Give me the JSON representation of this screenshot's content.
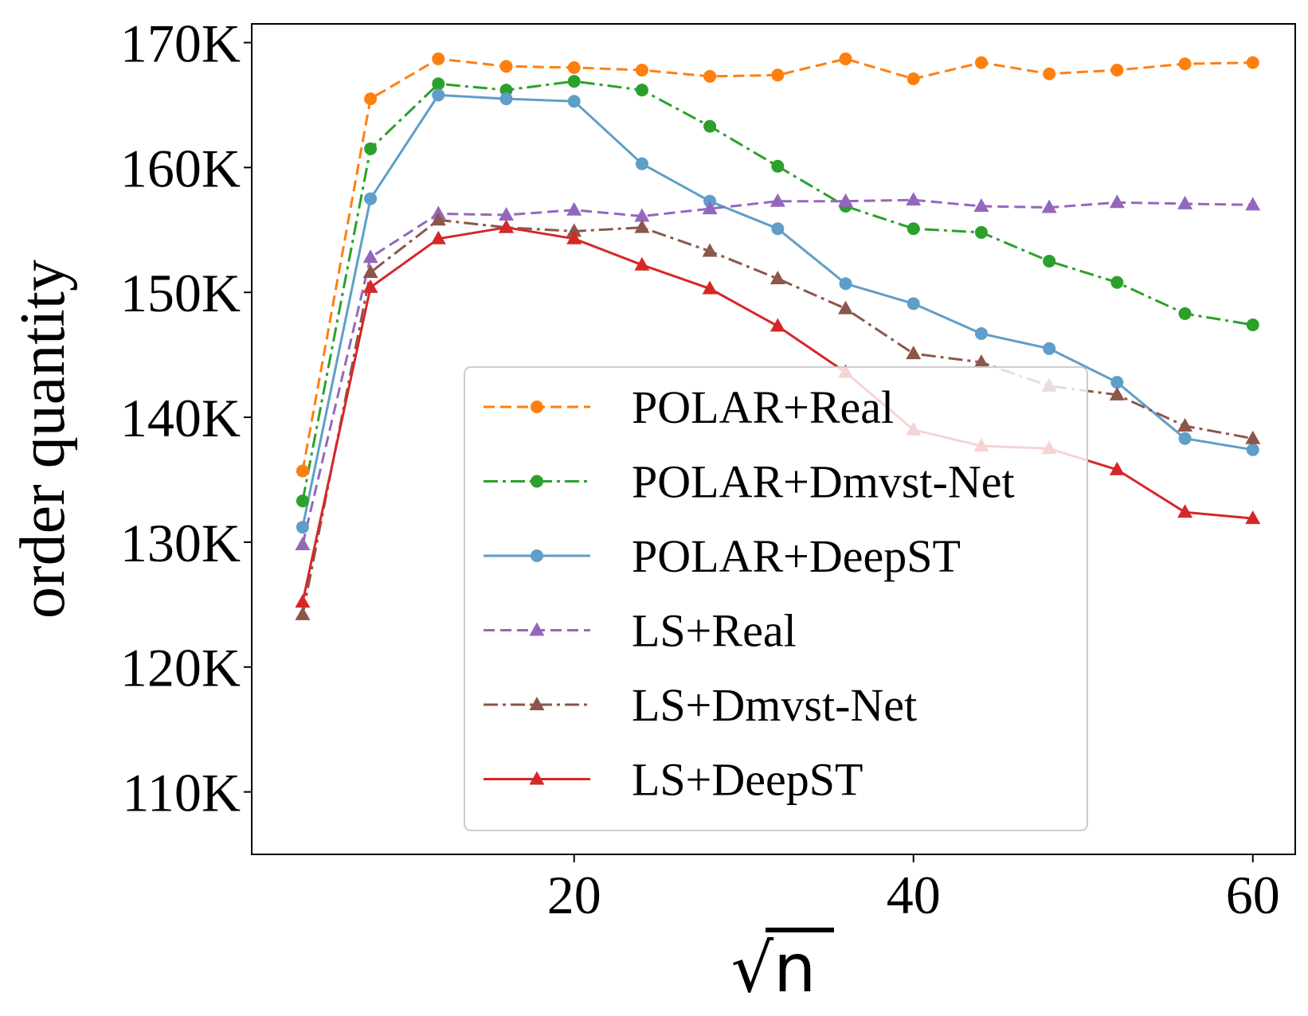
{
  "chart_data": {
    "type": "line",
    "title": "",
    "xlabel": "√n",
    "ylabel": "order quantity",
    "xlim": [
      1,
      62.5
    ],
    "ylim": [
      105000,
      171500
    ],
    "xticks": [
      20,
      40,
      60
    ],
    "xtick_labels": [
      "20",
      "40",
      "60"
    ],
    "yticks": [
      110000,
      120000,
      130000,
      140000,
      150000,
      160000,
      170000
    ],
    "ytick_labels": [
      "110K",
      "120K",
      "130K",
      "140K",
      "150K",
      "160K",
      "170K"
    ],
    "x": [
      4,
      8,
      12,
      16,
      20,
      24,
      28,
      32,
      36,
      40,
      44,
      48,
      52,
      56,
      60
    ],
    "legend_position": "center",
    "series": [
      {
        "name": "POLAR+Real",
        "color": "#ff7f0e",
        "dash": "dashed",
        "marker": "circle",
        "values": [
          135700,
          165500,
          168700,
          168100,
          168000,
          167800,
          167300,
          167400,
          168700,
          167100,
          168400,
          167500,
          167800,
          168300,
          168400
        ]
      },
      {
        "name": "POLAR+Dmvst-Net",
        "color": "#2ca02c",
        "dash": "dashdot",
        "marker": "circle",
        "values": [
          133300,
          161500,
          166700,
          166200,
          166900,
          166200,
          163300,
          160100,
          156900,
          155100,
          154800,
          152500,
          150800,
          148300,
          147400
        ]
      },
      {
        "name": "POLAR+DeepST",
        "color": "#5f9ec8",
        "dash": "solid",
        "marker": "circle",
        "values": [
          131200,
          157500,
          165800,
          165500,
          165300,
          160300,
          157300,
          155100,
          150700,
          149100,
          146700,
          145500,
          142800,
          138300,
          137400
        ]
      },
      {
        "name": "LS+Real",
        "color": "#9467bd",
        "dash": "dashed",
        "marker": "triangle",
        "values": [
          129800,
          152800,
          156300,
          156200,
          156600,
          156100,
          156700,
          157300,
          157300,
          157400,
          156900,
          156800,
          157200,
          157100,
          157000
        ]
      },
      {
        "name": "LS+Dmvst-Net",
        "color": "#8c564b",
        "dash": "dashdot",
        "marker": "triangle",
        "values": [
          124200,
          151600,
          155800,
          155200,
          154900,
          155200,
          153300,
          151100,
          148700,
          145100,
          144400,
          142500,
          141800,
          139300,
          138300
        ]
      },
      {
        "name": "LS+DeepST",
        "color": "#d62728",
        "dash": "solid",
        "marker": "triangle",
        "values": [
          125200,
          150400,
          154300,
          155200,
          154300,
          152200,
          150300,
          147300,
          143600,
          139000,
          137700,
          137500,
          135800,
          132400,
          131900
        ]
      }
    ]
  }
}
